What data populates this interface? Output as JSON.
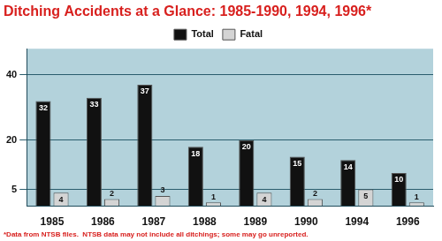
{
  "chart_data": {
    "type": "bar",
    "title": "Ditching Accidents at a Glance: 1985-1990, 1994, 1996*",
    "footnote": "*Data from NTSB files.  NTSB data may not include all ditchings; some may go unreported.",
    "categories": [
      "1985",
      "1986",
      "1987",
      "1988",
      "1989",
      "1990",
      "1994",
      "1996"
    ],
    "series": [
      {
        "name": "Total",
        "color": "#111111",
        "values": [
          32,
          33,
          37,
          18,
          20,
          15,
          14,
          10
        ]
      },
      {
        "name": "Fatal",
        "color": "#d4d4d4",
        "values": [
          4,
          2,
          3,
          1,
          4,
          2,
          5,
          1
        ]
      }
    ],
    "ylim": [
      0,
      48
    ],
    "yticks": [
      5,
      20,
      40
    ],
    "grid": true,
    "legend": "top",
    "data_labels": true
  }
}
